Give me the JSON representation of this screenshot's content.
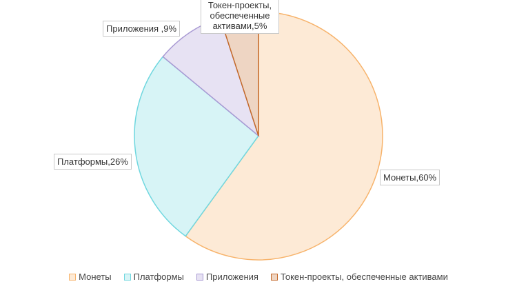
{
  "chart_data": {
    "type": "pie",
    "categories": [
      "Монеты",
      "Платформы",
      "Приложения",
      "Токен-проекты, обеспеченные активами"
    ],
    "values": [
      60,
      26,
      9,
      5
    ],
    "value_labels": [
      "Монеты,60%",
      "Платформы,26%",
      "Приложения ,9%",
      "Токен-проекты, обеспеченные активами,5%"
    ],
    "colors": [
      "#f7b36b",
      "#6fd7df",
      "#a899d3",
      "#c4692a"
    ],
    "legend": "bottom"
  }
}
